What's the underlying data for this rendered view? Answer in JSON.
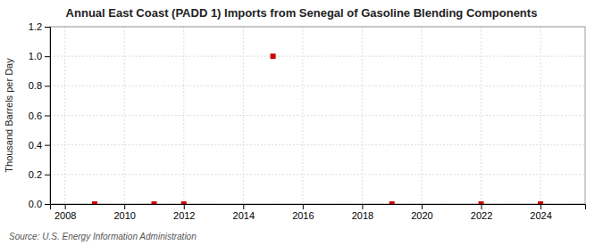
{
  "chart_data": {
    "type": "scatter",
    "title": "Annual East Coast (PADD 1) Imports from Senegal of Gasoline Blending Components",
    "ylabel": "Thousand Barrels per Day",
    "source": "Source: U.S. Energy Information Administration",
    "x": [
      2009,
      2011,
      2012,
      2015,
      2019,
      2022,
      2024
    ],
    "values": [
      0.0,
      0.0,
      0.0,
      1.0,
      0.0,
      0.0,
      0.0
    ],
    "color": "#cc0000",
    "marker": "square",
    "xlim": [
      2007.5,
      2025.5
    ],
    "ylim": [
      0.0,
      1.2
    ],
    "xticks": [
      2008,
      2010,
      2012,
      2014,
      2016,
      2018,
      2020,
      2022,
      2024
    ],
    "yticks": [
      {
        "value": 0.0,
        "label": "0.0"
      },
      0.2,
      0.4,
      0.6,
      0.8,
      {
        "value": 1.0,
        "label": "1.0"
      },
      1.2
    ],
    "grid": true
  }
}
